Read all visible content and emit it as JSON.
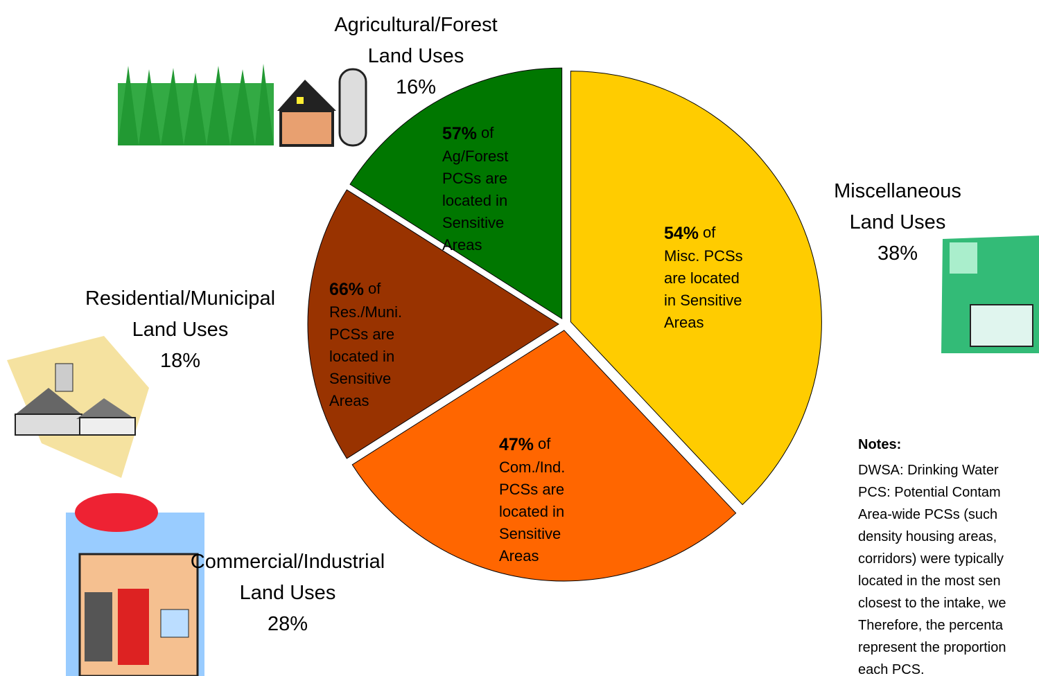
{
  "chart_data": {
    "type": "pie",
    "categories": [
      [
        "Miscellaneous",
        "Land Uses"
      ],
      [
        "Commercial/Industrial",
        "Land Uses"
      ],
      [
        "Residential/Municipal",
        "Land Uses"
      ],
      [
        "Agricultural/Forest",
        "Land Uses"
      ]
    ],
    "values": [
      38,
      28,
      18,
      16
    ],
    "value_labels": [
      "38%",
      "28%",
      "18%",
      "16%"
    ],
    "colors": [
      "#ffcc00",
      "#ff6600",
      "#993300",
      "#007700"
    ],
    "inner_labels": [
      {
        "bold": "54%",
        "lines": [
          "of",
          "Misc. PCSs",
          "are located",
          "in Sensitive",
          "Areas"
        ]
      },
      {
        "bold": "47%",
        "lines": [
          "of",
          "Com./Ind.",
          "PCSs are",
          "located in",
          "Sensitive",
          "Areas"
        ]
      },
      {
        "bold": "66%",
        "lines": [
          "of",
          "Res./Muni.",
          "PCSs are",
          "located in",
          "Sensitive",
          "Areas"
        ]
      },
      {
        "bold": "57%",
        "lines": [
          "of",
          "Ag/Forest",
          "PCSs are",
          "located in",
          "Sensitive",
          "Areas"
        ]
      }
    ]
  },
  "notes": {
    "title": "Notes:",
    "lines": [
      "DWSA: Drinking Water",
      "PCS: Potential Contam",
      "Area-wide PCSs (such",
      "density housing areas,",
      "corridors) were typically",
      "located in the most sen",
      "closest to the intake, we",
      "Therefore, the percenta",
      "represent the proportion",
      "each PCS."
    ]
  }
}
